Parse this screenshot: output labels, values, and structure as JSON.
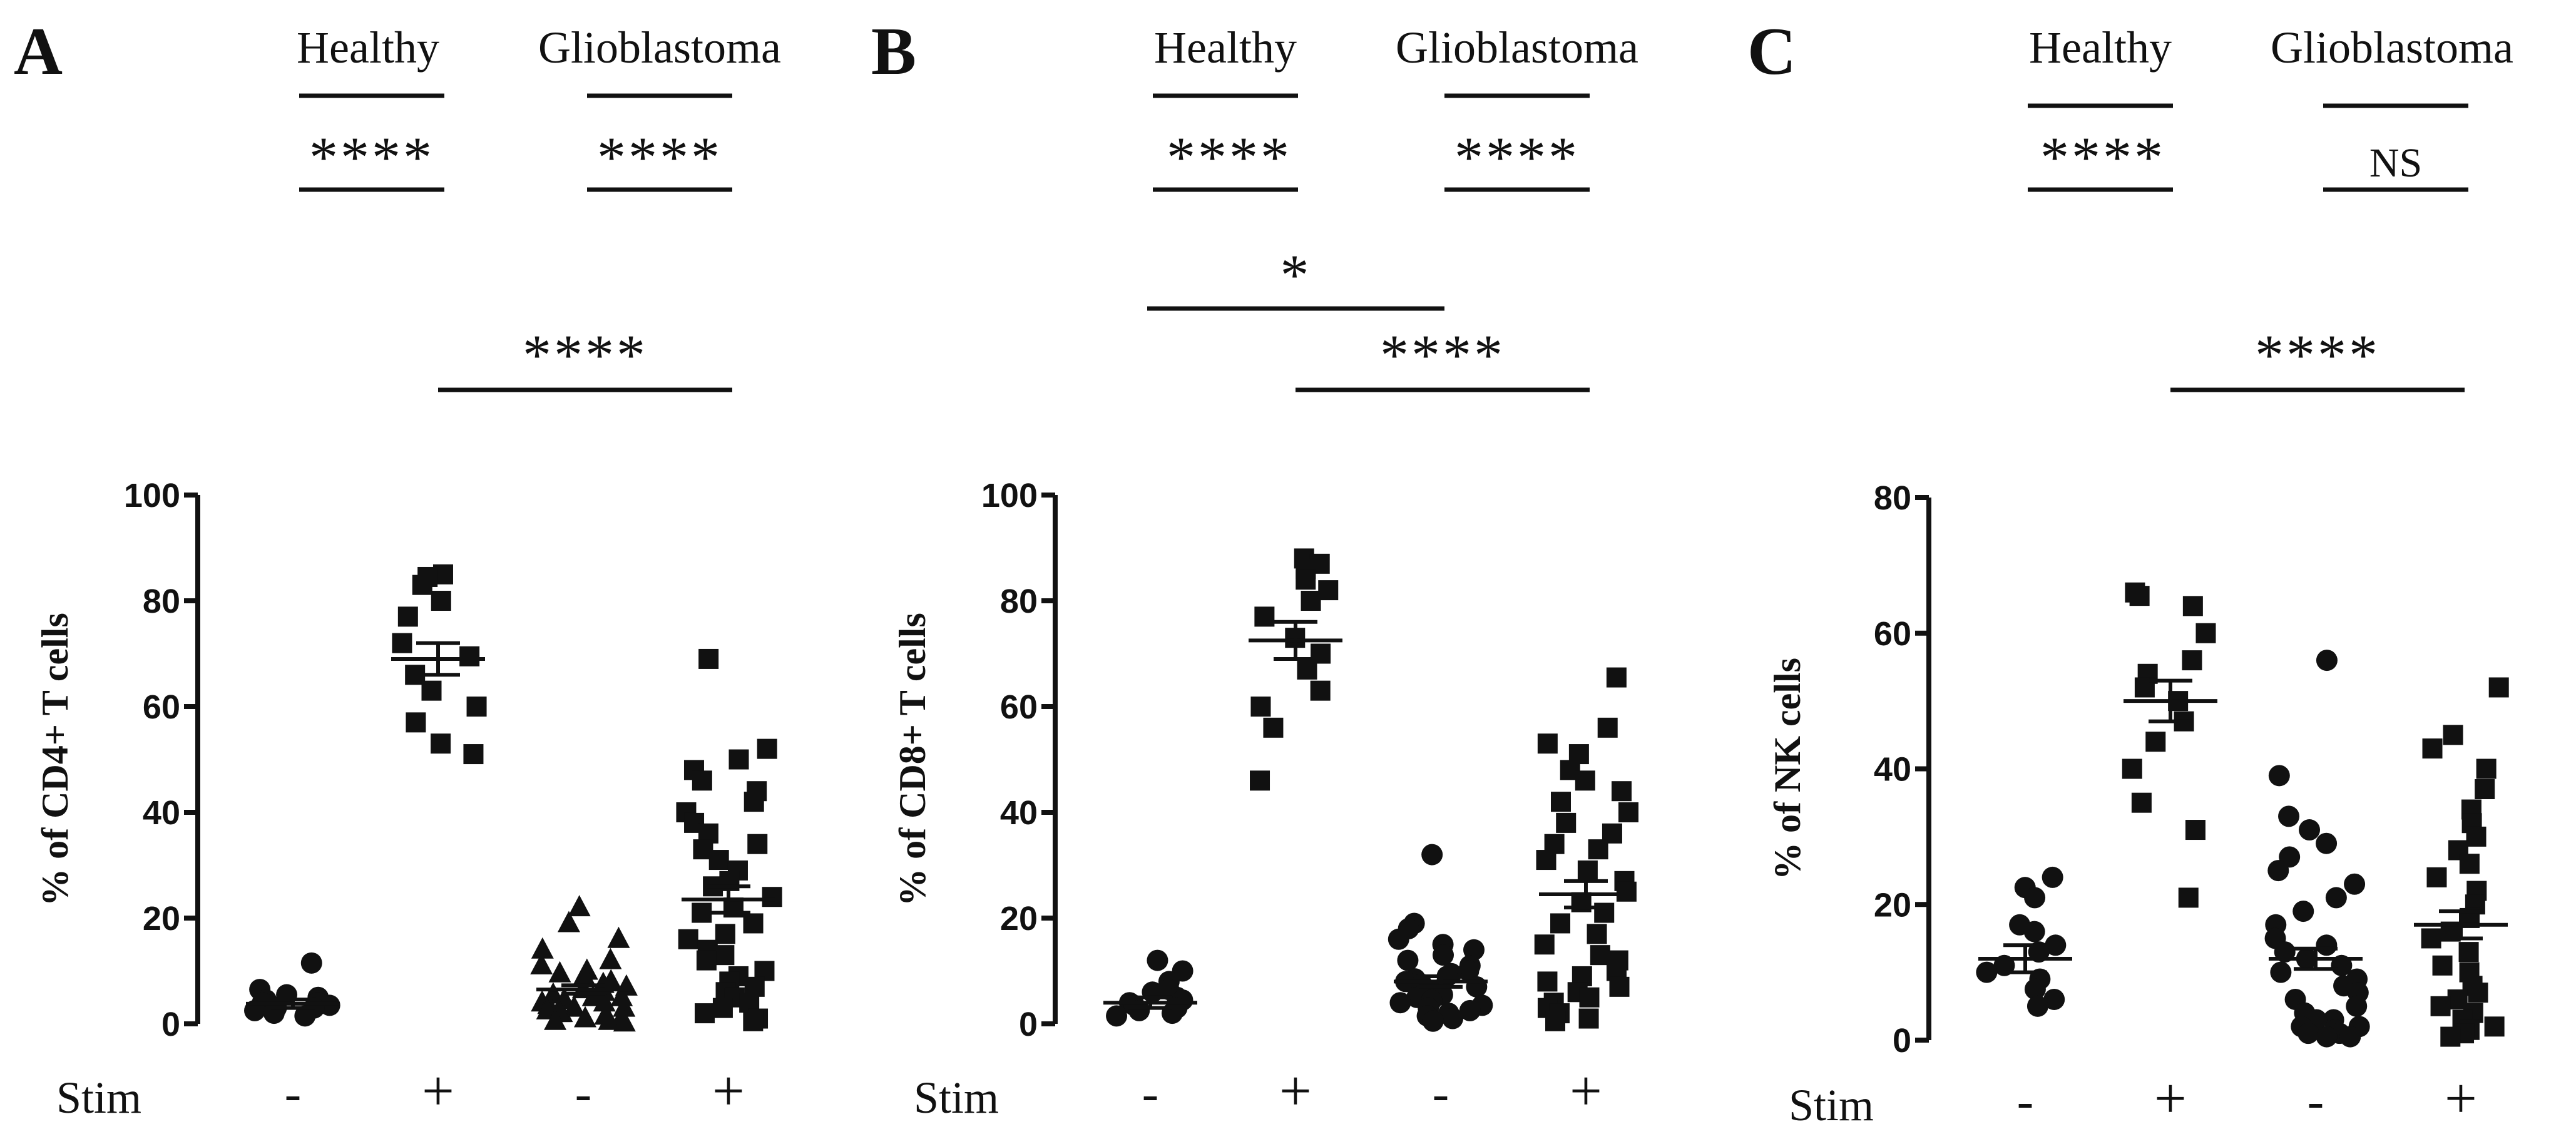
{
  "figure": {
    "panels": [
      {
        "id": "A",
        "panel_label": "A",
        "group_labels": [
          "Healthy",
          "Glioblastoma"
        ],
        "within_group_significance": [
          "****",
          "****"
        ],
        "comparisons": [
          {
            "from_column": 1,
            "to_column": 3,
            "label": "****"
          }
        ],
        "stim_label": "Stim",
        "stim_values": [
          "-",
          "+",
          "-",
          "+"
        ]
      },
      {
        "id": "B",
        "panel_label": "B",
        "group_labels": [
          "Healthy",
          "Glioblastoma"
        ],
        "within_group_significance": [
          "****",
          "****"
        ],
        "comparisons": [
          {
            "from_column": 0,
            "to_column": 2,
            "label": "*"
          },
          {
            "from_column": 1,
            "to_column": 3,
            "label": "****"
          }
        ],
        "stim_label": "Stim",
        "stim_values": [
          "-",
          "+",
          "-",
          "+"
        ]
      },
      {
        "id": "C",
        "panel_label": "C",
        "group_labels": [
          "Healthy",
          "Glioblastoma"
        ],
        "within_group_significance": [
          "****",
          "NS"
        ],
        "comparisons": [
          {
            "from_column": 1,
            "to_column": 3,
            "label": "****"
          }
        ],
        "stim_label": "Stim",
        "stim_values": [
          "-",
          "+",
          "-",
          "+"
        ]
      }
    ]
  },
  "chart_data": [
    {
      "type": "scatter",
      "title": "A",
      "xlabel": "Stim",
      "ylabel": "% of CD4+ T cells",
      "ylim": [
        0,
        100
      ],
      "yticks": [
        0,
        20,
        40,
        60,
        80,
        100
      ],
      "categories": [
        "Healthy -",
        "Healthy +",
        "Glioblastoma -",
        "Glioblastoma +"
      ],
      "series": [
        {
          "name": "Healthy -",
          "marker": "circle",
          "mean": 3.8,
          "sem": 0.8,
          "values": [
            11.5,
            6.5,
            5.5,
            5,
            4.5,
            4,
            4,
            3.5,
            3,
            3,
            2.5,
            2,
            1.5
          ]
        },
        {
          "name": "Healthy +",
          "marker": "square",
          "mean": 69,
          "sem": 3,
          "values": [
            85,
            84.5,
            83,
            80,
            77,
            72,
            69.5,
            66,
            63,
            60,
            57,
            53,
            51
          ]
        },
        {
          "name": "Glioblastoma -",
          "marker": "triangle",
          "mean": 6.5,
          "sem": 0.8,
          "values": [
            22,
            19,
            16,
            14,
            12,
            11,
            10,
            9.5,
            9,
            8,
            7.5,
            7,
            6.5,
            6,
            5.5,
            5,
            5,
            4.5,
            4,
            4,
            3.5,
            3,
            3,
            2.5,
            2,
            2,
            1.5,
            1,
            1,
            0.5,
            0.5,
            0.2
          ]
        },
        {
          "name": "Glioblastoma +",
          "marker": "square",
          "mean": 23.5,
          "sem": 2.5,
          "values": [
            69,
            52,
            50,
            48,
            46,
            44,
            42,
            40,
            38,
            36,
            34,
            33,
            31,
            29,
            27,
            26,
            24,
            22,
            21,
            19,
            17,
            16,
            14,
            13,
            12,
            10,
            9,
            8,
            7,
            6,
            5,
            4,
            3,
            2,
            1,
            0.5
          ]
        }
      ]
    },
    {
      "type": "scatter",
      "title": "B",
      "xlabel": "Stim",
      "ylabel": "% of CD8+ T cells",
      "ylim": [
        0,
        100
      ],
      "yticks": [
        0,
        20,
        40,
        60,
        80,
        100
      ],
      "categories": [
        "Healthy -",
        "Healthy +",
        "Glioblastoma -",
        "Glioblastoma +"
      ],
      "series": [
        {
          "name": "Healthy -",
          "marker": "circle",
          "mean": 4,
          "sem": 1,
          "values": [
            12,
            10,
            8,
            6.5,
            6,
            5,
            4.5,
            4,
            3.5,
            3,
            2.5,
            2,
            1.5
          ]
        },
        {
          "name": "Healthy +",
          "marker": "square",
          "mean": 72.5,
          "sem": 3.5,
          "values": [
            88,
            87,
            86,
            84,
            82,
            80,
            77,
            73,
            70,
            67,
            63,
            60,
            56,
            46
          ]
        },
        {
          "name": "Glioblastoma -",
          "marker": "circle",
          "mean": 8,
          "sem": 1,
          "values": [
            32,
            19,
            18,
            16,
            15,
            14,
            13,
            12,
            11,
            10,
            9.5,
            9,
            8.5,
            8,
            7.5,
            7,
            6.5,
            6,
            5.5,
            5,
            4.5,
            4,
            3.5,
            3,
            2.5,
            2,
            1.5,
            1,
            0.5
          ]
        },
        {
          "name": "Glioblastoma +",
          "marker": "square",
          "mean": 24.5,
          "sem": 2.5,
          "values": [
            65.5,
            56,
            53,
            51,
            48,
            46,
            44,
            42,
            40,
            38,
            36,
            34,
            33,
            31,
            29,
            27,
            25,
            23,
            21,
            19,
            17,
            15,
            13,
            12,
            10,
            9,
            8,
            7,
            6,
            5,
            4,
            3,
            2,
            1,
            0.5
          ]
        }
      ]
    },
    {
      "type": "scatter",
      "title": "C",
      "xlabel": "Stim",
      "ylabel": "% of NK cells",
      "ylim": [
        0,
        80
      ],
      "yticks": [
        0,
        20,
        40,
        60,
        80
      ],
      "categories": [
        "Healthy -",
        "Healthy +",
        "Glioblastoma -",
        "Glioblastoma +"
      ],
      "series": [
        {
          "name": "Healthy -",
          "marker": "circle",
          "mean": 12,
          "sem": 2,
          "values": [
            24,
            22.5,
            21,
            17,
            16,
            14,
            13,
            11,
            10,
            9,
            7.5,
            6,
            5
          ]
        },
        {
          "name": "Healthy +",
          "marker": "square",
          "mean": 50,
          "sem": 3,
          "values": [
            66,
            65.5,
            64,
            60,
            56,
            54,
            52,
            50,
            47,
            44,
            40,
            35,
            31,
            21
          ]
        },
        {
          "name": "Glioblastoma -",
          "marker": "circle",
          "mean": 12,
          "sem": 1.5,
          "values": [
            56,
            39,
            33,
            31,
            29,
            27,
            25,
            23,
            21,
            19,
            17,
            15,
            14,
            13,
            12,
            11,
            10,
            9,
            8,
            7,
            6,
            5,
            4,
            3,
            3,
            2,
            2,
            1.5,
            1,
            1,
            0.5,
            0.5
          ]
        },
        {
          "name": "Glioblastoma +",
          "marker": "square",
          "mean": 17,
          "sem": 2,
          "values": [
            52,
            45,
            43,
            40,
            37,
            34,
            32,
            30,
            28,
            26,
            24,
            22,
            20,
            18,
            16,
            15,
            13,
            11,
            10,
            8,
            7,
            6,
            5,
            4,
            3,
            2,
            1.5,
            1,
            0.5
          ]
        }
      ]
    }
  ]
}
